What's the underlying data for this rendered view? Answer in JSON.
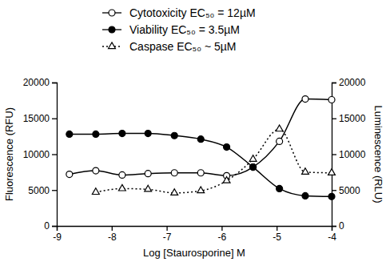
{
  "chart_data": {
    "type": "line",
    "x_label": "Log [Staurosporine] M",
    "y_label": "Fluorescence (RFU)",
    "y2_label": "Luminescence (RLU)",
    "x": [
      -8.77,
      -8.29,
      -7.81,
      -7.34,
      -6.86,
      -6.38,
      -5.91,
      -5.43,
      -4.95,
      -4.48,
      -4.0
    ],
    "xlim": [
      -9,
      -4
    ],
    "xticks": [
      -9,
      -8,
      -7,
      -6,
      -5,
      -4
    ],
    "ylim": [
      0,
      20000
    ],
    "yticks": [
      0,
      5000,
      10000,
      15000,
      20000
    ],
    "y2lim": [
      0,
      20000
    ],
    "y2ticks": [
      0,
      5000,
      10000,
      15000,
      20000
    ],
    "grid": false,
    "legend": "top",
    "series": [
      {
        "name": "Cytotoxicity EC₅₀ = 12µM",
        "color": "#000000",
        "marker": "circle-open",
        "line_style": "solid",
        "values": [
          7200,
          7700,
          7100,
          7300,
          7400,
          7400,
          7000,
          8200,
          11800,
          17700,
          17600
        ]
      },
      {
        "name": "Viability EC₅₀ = 3.5µM",
        "color": "#000000",
        "marker": "circle",
        "line_style": "solid",
        "values": [
          12800,
          12800,
          12900,
          12900,
          12600,
          12100,
          11000,
          8200,
          5200,
          4200,
          4100
        ]
      },
      {
        "name": "Caspase  EC₅₀ ~ 5µM",
        "color": "#000000",
        "marker": "triangle-open",
        "line_style": "dotted",
        "axis": "y2",
        "values": [
          null,
          4700,
          5200,
          5100,
          4600,
          4900,
          6300,
          9300,
          13500,
          7500,
          7400
        ]
      }
    ]
  }
}
